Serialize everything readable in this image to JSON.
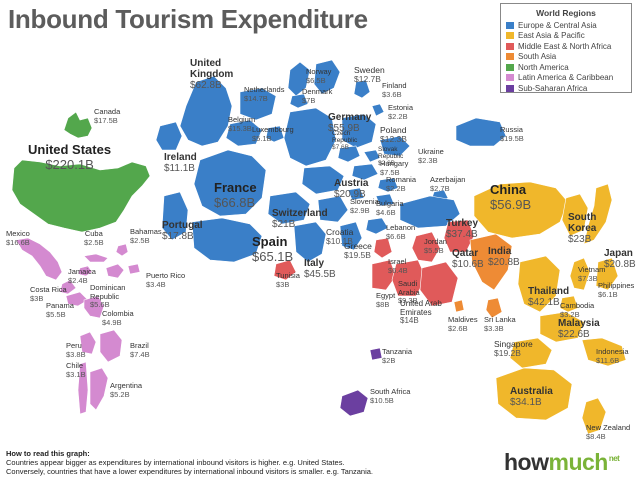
{
  "title": "Inbound Tourism Expenditure",
  "legend": {
    "title": "World Regions",
    "items": [
      {
        "label": "Europe & Central Asia",
        "color": "#3a7fc8"
      },
      {
        "label": "East Asia & Pacific",
        "color": "#f0b72b"
      },
      {
        "label": "Middle East & North Africa",
        "color": "#e05a5a"
      },
      {
        "label": "South Asia",
        "color": "#ee8b35"
      },
      {
        "label": "North America",
        "color": "#53a74c"
      },
      {
        "label": "Latin America & Caribbean",
        "color": "#d48ad0"
      },
      {
        "label": "Sub-Saharan Africa",
        "color": "#6b3fa0"
      }
    ]
  },
  "countries": {
    "canada": {
      "name": "Canada",
      "value": "$17.5B"
    },
    "usa": {
      "name": "United States",
      "value": "$220.1B"
    },
    "mexico": {
      "name": "Mexico",
      "value": "$16.6B"
    },
    "cuba": {
      "name": "Cuba",
      "value": "$2.5B"
    },
    "bahamas": {
      "name": "Bahamas",
      "value": "$2.5B"
    },
    "jamaica": {
      "name": "Jamaica",
      "value": "$2.4B"
    },
    "costa_rica": {
      "name": "Costa Rica",
      "value": "$3B"
    },
    "dominican": {
      "name": "Dominican Republic",
      "value": "$5.6B"
    },
    "puerto_rico": {
      "name": "Puerto Rico",
      "value": "$3.4B"
    },
    "panama": {
      "name": "Panama",
      "value": "$5.5B"
    },
    "colombia": {
      "name": "Colombia",
      "value": "$4.9B"
    },
    "peru": {
      "name": "Peru",
      "value": "$3.8B"
    },
    "brazil": {
      "name": "Brazil",
      "value": "$7.4B"
    },
    "chile": {
      "name": "Chile",
      "value": "$3.1B"
    },
    "argentina": {
      "name": "Argentina",
      "value": "$5.2B"
    },
    "uk": {
      "name": "United Kingdom",
      "value": "$62.8B"
    },
    "netherlands": {
      "name": "Netherlands",
      "value": "$14.7B"
    },
    "norway": {
      "name": "Norway",
      "value": "$6.5B"
    },
    "denmark": {
      "name": "Denmark",
      "value": "$7B"
    },
    "sweden": {
      "name": "Sweden",
      "value": "$12.7B"
    },
    "finland": {
      "name": "Finland",
      "value": "$3.6B"
    },
    "estonia": {
      "name": "Estonia",
      "value": "$2.2B"
    },
    "belgium": {
      "name": "Belgium",
      "value": "$15.3B"
    },
    "luxembourg": {
      "name": "Luxembourg",
      "value": "$5.1B"
    },
    "germany": {
      "name": "Germany",
      "value": "$55.9B"
    },
    "poland": {
      "name": "Poland",
      "value": "$12.3B"
    },
    "czech": {
      "name": "Czech Republic",
      "value": "$7.6B"
    },
    "slovak": {
      "name": "Slovak Republic",
      "value": "$2.6B"
    },
    "ukraine": {
      "name": "Ukraine",
      "value": "$2.3B"
    },
    "russia": {
      "name": "Russia",
      "value": "$19.5B"
    },
    "ireland": {
      "name": "Ireland",
      "value": "$11.1B"
    },
    "hungary": {
      "name": "Hungary",
      "value": "$7.5B"
    },
    "austria": {
      "name": "Austria",
      "value": "$20.9B"
    },
    "romania": {
      "name": "Romania",
      "value": "$2.2B"
    },
    "france": {
      "name": "France",
      "value": "$66.8B"
    },
    "slovenia": {
      "name": "Slovenia",
      "value": "$2.9B"
    },
    "bulgaria": {
      "name": "Bulgaria",
      "value": "$4.6B"
    },
    "azerbaijan": {
      "name": "Azerbaijan",
      "value": "$2.7B"
    },
    "portugal": {
      "name": "Portugal",
      "value": "$17.8B"
    },
    "switzerland": {
      "name": "Switzerland",
      "value": "$21B"
    },
    "croatia": {
      "name": "Croatia",
      "value": "$10.1B"
    },
    "lebanon": {
      "name": "Lebanon",
      "value": "$6.6B"
    },
    "turkey": {
      "name": "Turkey",
      "value": "$37.4B"
    },
    "spain": {
      "name": "Spain",
      "value": "$65.1B"
    },
    "greece": {
      "name": "Greece",
      "value": "$19.5B"
    },
    "italy": {
      "name": "Italy",
      "value": "$45.5B"
    },
    "tunisia": {
      "name": "Tunisia",
      "value": "$3B"
    },
    "israel": {
      "name": "Israel",
      "value": "$6.4B"
    },
    "jordan": {
      "name": "Jordan",
      "value": "$5.5B"
    },
    "qatar": {
      "name": "Qatar",
      "value": "$10.6B"
    },
    "india": {
      "name": "India",
      "value": "$20.8B"
    },
    "egypt": {
      "name": "Egypt",
      "value": "$8B"
    },
    "saudi": {
      "name": "Saudi Arabia",
      "value": "$9.3B"
    },
    "uae": {
      "name": "United Arab Emirates",
      "value": "$14B"
    },
    "maldives": {
      "name": "Maldives",
      "value": "$2.6B"
    },
    "sri_lanka": {
      "name": "Sri Lanka",
      "value": "$3.3B"
    },
    "china": {
      "name": "China",
      "value": "$56.9B"
    },
    "south_korea": {
      "name": "South Korea",
      "value": "$23B"
    },
    "japan": {
      "name": "Japan",
      "value": "$20.8B"
    },
    "vietnam": {
      "name": "Vietnam",
      "value": "$7.3B"
    },
    "thailand": {
      "name": "Thailand",
      "value": "$42.1B"
    },
    "philippines": {
      "name": "Philippines",
      "value": "$6.1B"
    },
    "cambodia": {
      "name": "Cambodia",
      "value": "$3.2B"
    },
    "malaysia": {
      "name": "Malaysia",
      "value": "$22.6B"
    },
    "singapore": {
      "name": "Singapore",
      "value": "$19.2B"
    },
    "indonesia": {
      "name": "Indonesia",
      "value": "$11.6B"
    },
    "tanzania": {
      "name": "Tanzania",
      "value": "$2B"
    },
    "south_africa": {
      "name": "South Africa",
      "value": "$10.5B"
    },
    "australia": {
      "name": "Australia",
      "value": "$34.1B"
    },
    "new_zealand": {
      "name": "New Zealand",
      "value": "$8.4B"
    }
  },
  "howto": {
    "heading": "How to read this graph:",
    "line1": "Countries appear bigger as expenditures by international inbound visitors is higher. e.g. United States.",
    "line2": "Conversely, countries that have a lower expenditures by international inbound visitors is smaller. e.g. Tanzania."
  },
  "brand": {
    "main": "how",
    "accent": "much",
    "tld": "net"
  }
}
